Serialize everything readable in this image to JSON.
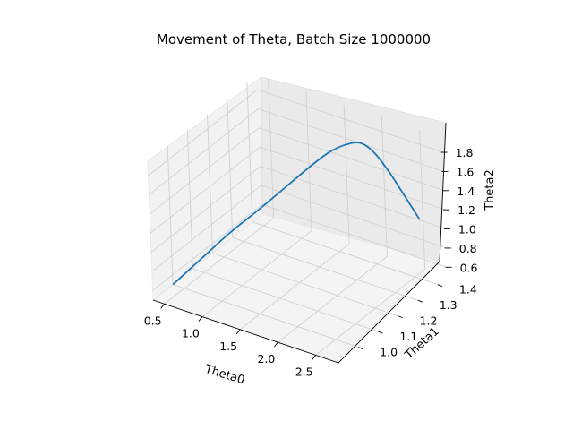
{
  "chart_data": {
    "type": "line3d",
    "title": "Movement of Theta, Batch Size 1000000",
    "xlabel": "Theta0",
    "ylabel": "Theta1",
    "zlabel": "Theta2",
    "xlim": [
      0.35,
      2.8
    ],
    "ylim": [
      0.9,
      1.45
    ],
    "zlim": [
      0.5,
      1.95
    ],
    "grid": true,
    "xticks": [
      "0.5",
      "1.0",
      "1.5",
      "2.0",
      "2.5"
    ],
    "yticks": [
      "1.0",
      "1.1",
      "1.2",
      "1.3",
      "1.4"
    ],
    "zticks": [
      "0.6",
      "0.8",
      "1.0",
      "1.2",
      "1.4",
      "1.6",
      "1.8"
    ],
    "series": [
      {
        "color": "#1f77b4",
        "x": [
          0.35,
          0.6,
          0.85,
          1.1,
          1.35,
          1.6,
          1.75,
          1.9,
          2.05,
          2.2,
          2.35,
          2.5,
          2.7
        ],
        "y": [
          1.0,
          1.05,
          1.1,
          1.15,
          1.2,
          1.25,
          1.28,
          1.3,
          1.32,
          1.33,
          1.34,
          1.35,
          1.36
        ],
        "z": [
          0.5,
          0.75,
          1.0,
          1.22,
          1.45,
          1.68,
          1.8,
          1.88,
          1.91,
          1.84,
          1.68,
          1.48,
          1.22
        ]
      }
    ]
  }
}
